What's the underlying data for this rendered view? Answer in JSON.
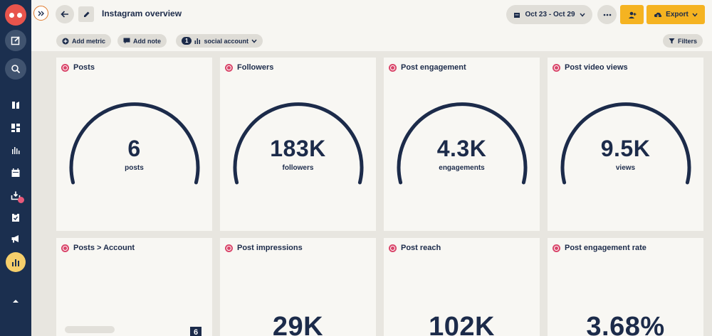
{
  "header": {
    "title": "Instagram overview",
    "date_range": "Oct 23 - Oct 29",
    "export_label": "Export"
  },
  "toolbar": {
    "add_metric": "Add metric",
    "add_note": "Add note",
    "account_count": "1",
    "account_label": "social account",
    "filters": "Filters"
  },
  "cards": [
    {
      "title": "Posts",
      "value": "6",
      "unit": "posts"
    },
    {
      "title": "Followers",
      "value": "183K",
      "unit": "followers"
    },
    {
      "title": "Post engagement",
      "value": "4.3K",
      "unit": "engagements"
    },
    {
      "title": "Post video views",
      "value": "9.5K",
      "unit": "views"
    },
    {
      "title": "Posts > Account",
      "value": "6"
    },
    {
      "title": "Post impressions",
      "value": "29K"
    },
    {
      "title": "Post reach",
      "value": "102K"
    },
    {
      "title": "Post engagement rate",
      "value": "3.68%"
    }
  ],
  "colors": {
    "rail": "#1b2f4f",
    "accent": "#f5b321",
    "gauge": "#1c2b4a",
    "instagram": "#d9466a"
  },
  "icons": {
    "rail": [
      "owl-logo-icon",
      "compose-icon",
      "search-icon",
      "streams-icon",
      "dashboard-icon",
      "analytics-bars-icon",
      "calendar-icon",
      "inbox-icon",
      "clipboard-icon",
      "megaphone-icon",
      "chart-icon",
      "chevron-up-icon"
    ]
  }
}
